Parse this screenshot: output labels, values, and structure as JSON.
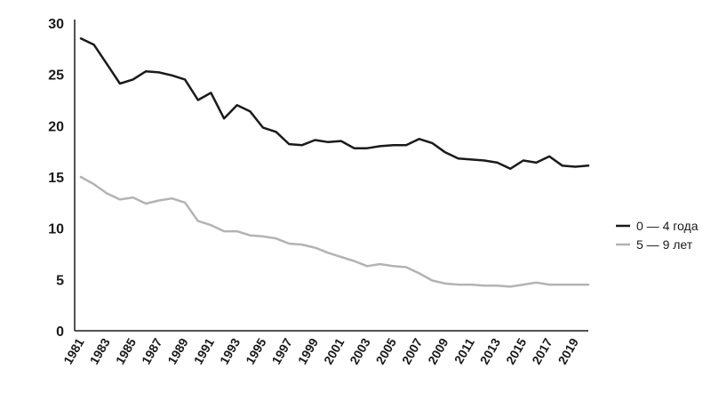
{
  "chart_data": {
    "type": "line",
    "title": "",
    "xlabel": "",
    "ylabel": "",
    "ylim": [
      0,
      30
    ],
    "yticks": [
      0,
      5,
      10,
      15,
      20,
      25,
      30
    ],
    "xlim": [
      1981,
      2020
    ],
    "xtick_labels": [
      "1981",
      "1983",
      "1985",
      "1987",
      "1989",
      "1991",
      "1993",
      "1995",
      "1997",
      "1999",
      "2001",
      "2003",
      "2005",
      "2007",
      "2009",
      "2011",
      "2013",
      "2015",
      "2017",
      "2019"
    ],
    "grid": false,
    "legend_position": "right",
    "x": [
      1981,
      1982,
      1983,
      1984,
      1985,
      1986,
      1987,
      1988,
      1989,
      1990,
      1991,
      1992,
      1993,
      1994,
      1995,
      1996,
      1997,
      1998,
      1999,
      2000,
      2001,
      2002,
      2003,
      2004,
      2005,
      2006,
      2007,
      2008,
      2009,
      2010,
      2011,
      2012,
      2013,
      2014,
      2015,
      2016,
      2017,
      2018,
      2019,
      2020
    ],
    "series": [
      {
        "name": "0 — 4 года",
        "color": "#1a1a1a",
        "values": [
          28.5,
          27.9,
          26.0,
          24.1,
          24.5,
          25.3,
          25.2,
          24.9,
          24.5,
          22.5,
          23.2,
          20.7,
          22.0,
          21.4,
          19.8,
          19.4,
          18.2,
          18.1,
          18.6,
          18.4,
          18.5,
          17.8,
          17.8,
          18.0,
          18.1,
          18.1,
          18.7,
          18.3,
          17.4,
          16.8,
          16.7,
          16.6,
          16.4,
          15.8,
          16.6,
          16.4,
          17.0,
          16.1,
          16.0,
          16.1
        ]
      },
      {
        "name": "5 — 9 лет",
        "color": "#b3b3b3",
        "values": [
          15.0,
          14.3,
          13.4,
          12.8,
          13.0,
          12.4,
          12.7,
          12.9,
          12.5,
          10.7,
          10.3,
          9.7,
          9.7,
          9.3,
          9.2,
          9.0,
          8.5,
          8.4,
          8.1,
          7.6,
          7.2,
          6.8,
          6.3,
          6.5,
          6.3,
          6.2,
          5.6,
          4.9,
          4.6,
          4.5,
          4.5,
          4.4,
          4.4,
          4.3,
          4.5,
          4.7,
          4.5,
          4.5,
          4.5,
          4.5
        ]
      }
    ]
  }
}
